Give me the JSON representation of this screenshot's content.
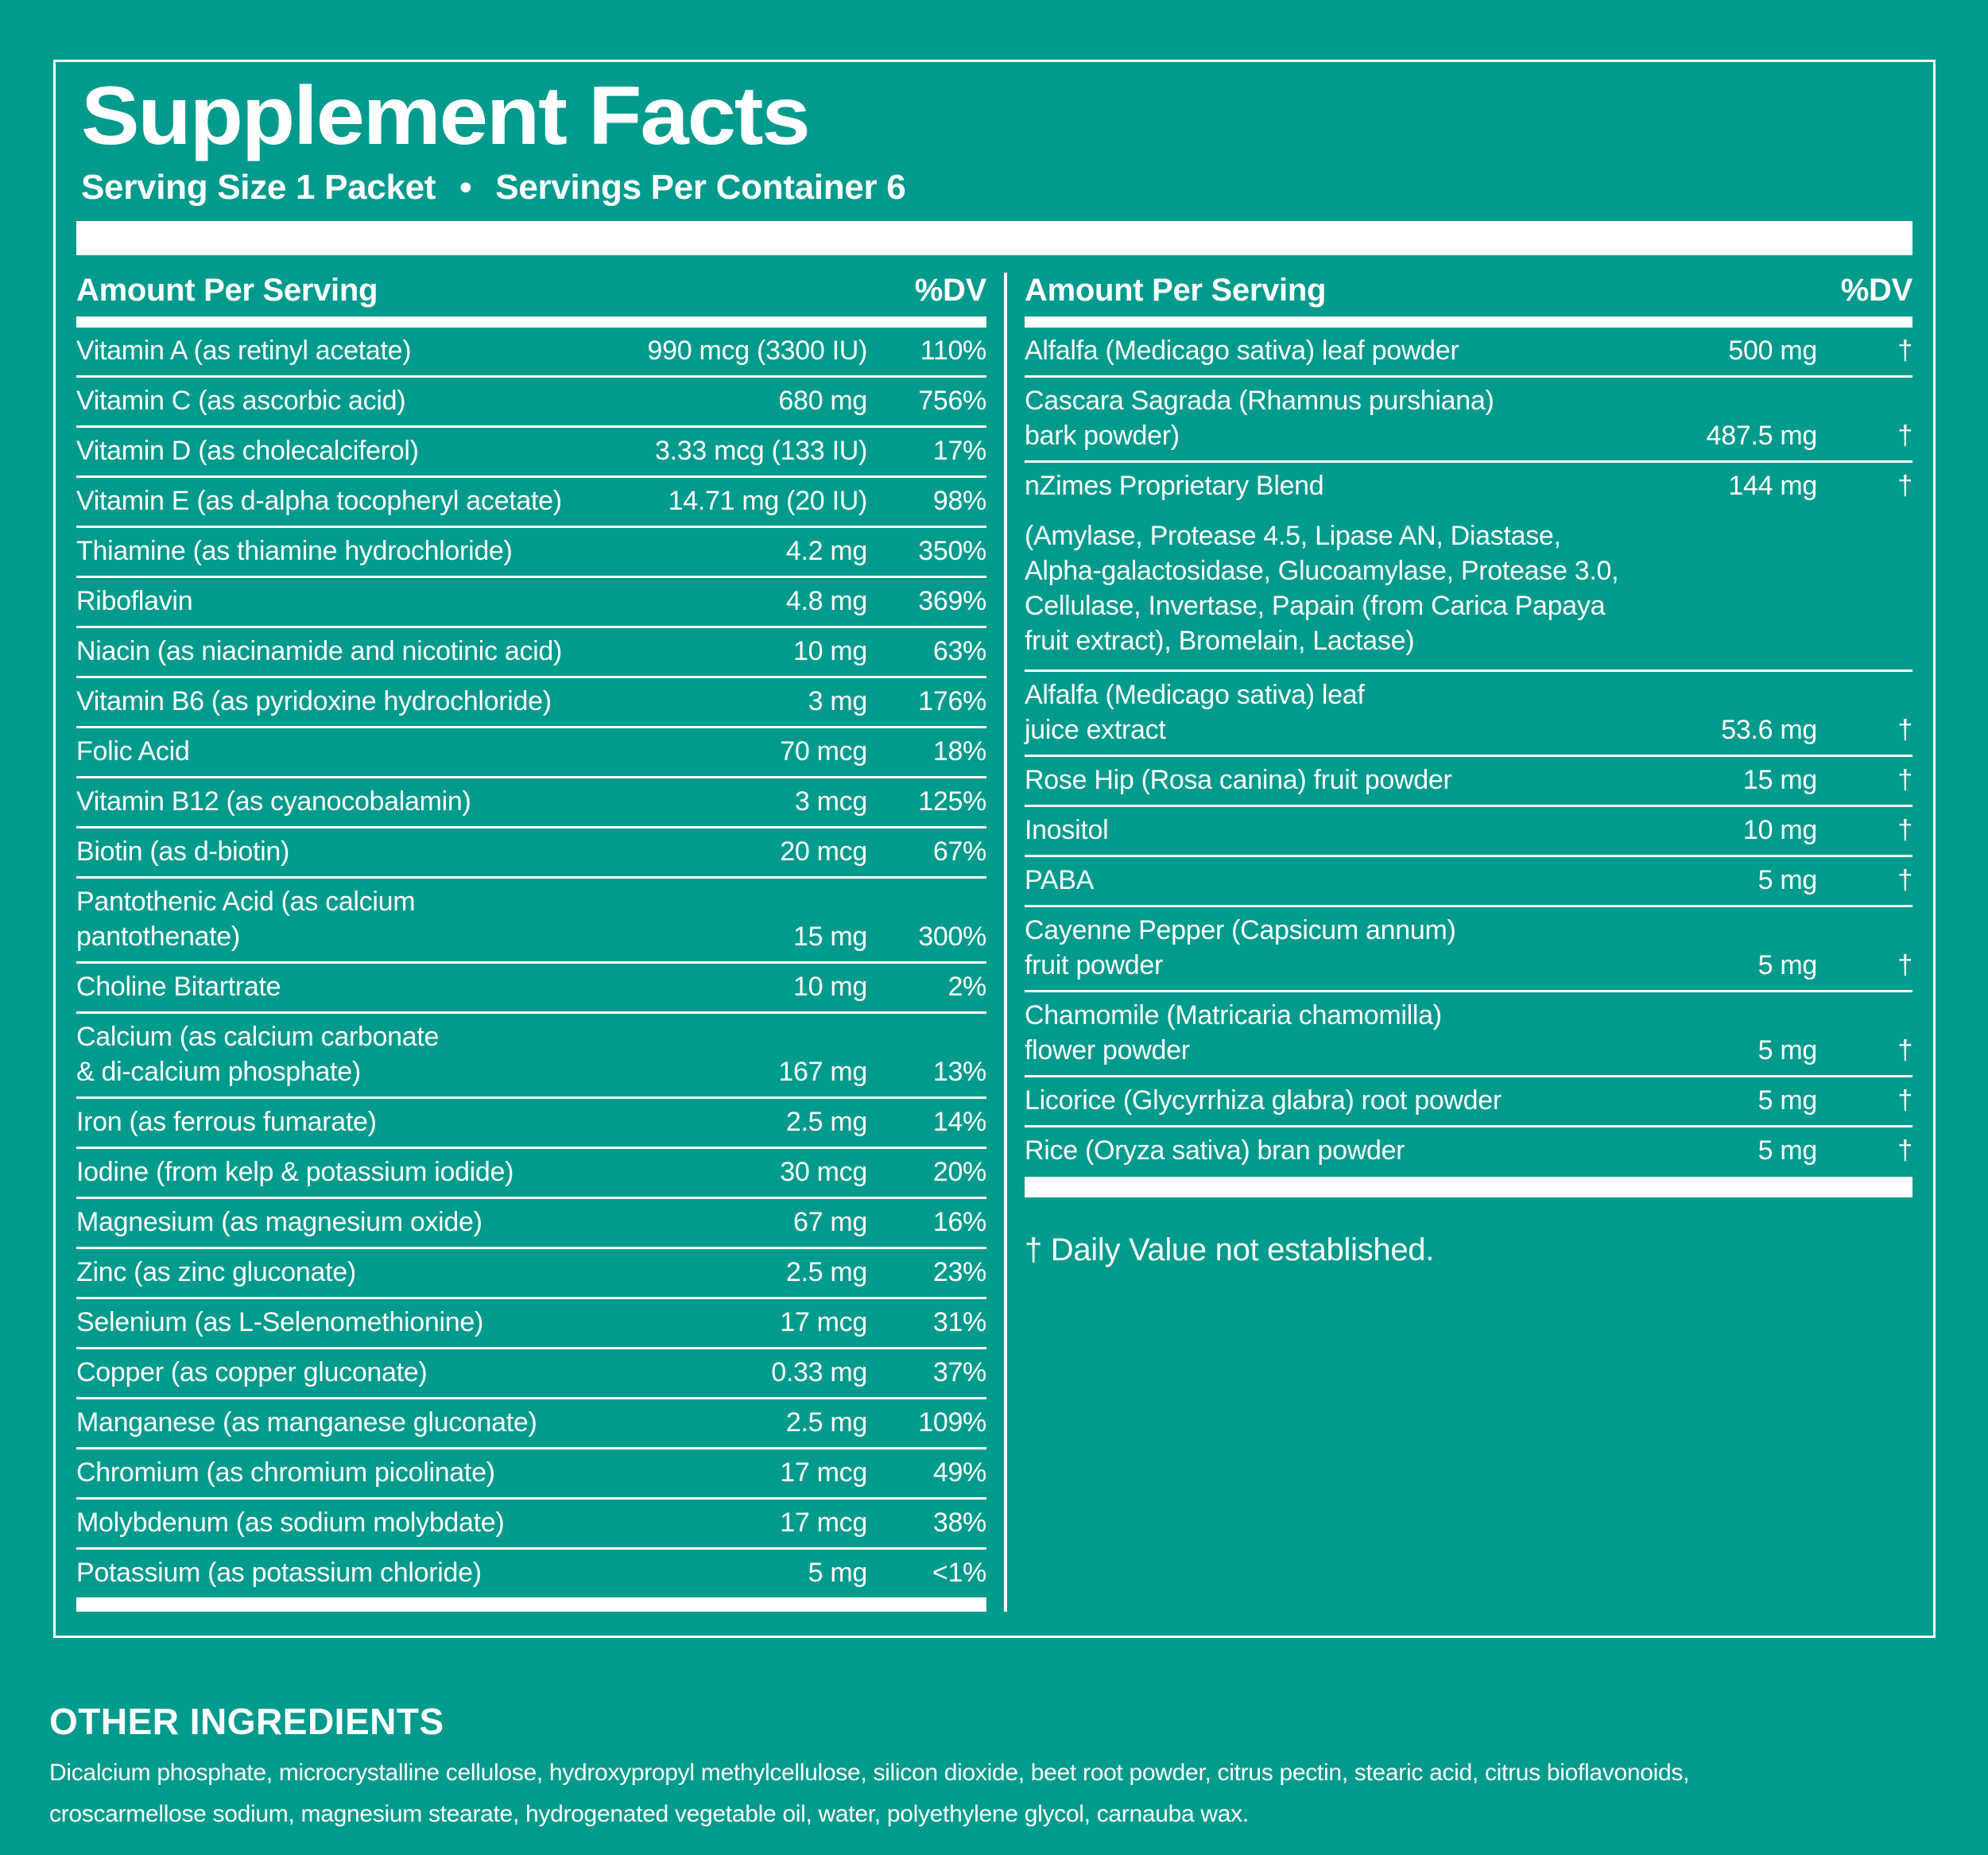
{
  "colors": {
    "background": "#009b8d",
    "foreground": "#ffffff"
  },
  "panel": {
    "title": "Supplement Facts",
    "serving_size": "Serving Size 1 Packet",
    "bullet": "•",
    "servings_per_container": "Servings Per Container 6"
  },
  "left_column": {
    "amount_header": "Amount Per Serving",
    "dv_header": "%DV",
    "rows": [
      {
        "name": "Vitamin A (as retinyl acetate)",
        "amount": "990 mcg (3300 IU)",
        "dv": "110%"
      },
      {
        "name": "Vitamin C (as ascorbic acid)",
        "amount": "680 mg",
        "dv": "756%"
      },
      {
        "name": "Vitamin D (as cholecalciferol)",
        "amount": "3.33 mcg (133 IU)",
        "dv": "17%"
      },
      {
        "name": "Vitamin E (as d-alpha tocopheryl acetate)",
        "amount": "14.71 mg (20 IU)",
        "dv": "98%"
      },
      {
        "name": "Thiamine (as thiamine hydrochloride)",
        "amount": "4.2 mg",
        "dv": "350%"
      },
      {
        "name": "Riboflavin",
        "amount": "4.8 mg",
        "dv": "369%"
      },
      {
        "name": "Niacin (as niacinamide and nicotinic acid)",
        "amount": "10 mg",
        "dv": "63%"
      },
      {
        "name": "Vitamin B6 (as pyridoxine hydrochloride)",
        "amount": "3 mg",
        "dv": "176%"
      },
      {
        "name": "Folic Acid",
        "amount": "70 mcg",
        "dv": "18%"
      },
      {
        "name": "Vitamin B12 (as cyanocobalamin)",
        "amount": "3 mcg",
        "dv": "125%"
      },
      {
        "name": "Biotin (as d-biotin)",
        "amount": "20 mcg",
        "dv": "67%"
      },
      {
        "name": "Pantothenic Acid (as calcium\npantothenate)",
        "amount": "15 mg",
        "dv": "300%"
      },
      {
        "name": "Choline Bitartrate",
        "amount": "10 mg",
        "dv": "2%"
      },
      {
        "name": "Calcium (as calcium carbonate\n& di-calcium phosphate)",
        "amount": "167 mg",
        "dv": "13%"
      },
      {
        "name": "Iron (as ferrous fumarate)",
        "amount": "2.5 mg",
        "dv": "14%"
      },
      {
        "name": "Iodine (from kelp & potassium iodide)",
        "amount": "30 mcg",
        "dv": "20%"
      },
      {
        "name": "Magnesium (as magnesium oxide)",
        "amount": "67 mg",
        "dv": "16%"
      },
      {
        "name": "Zinc (as zinc gluconate)",
        "amount": "2.5 mg",
        "dv": "23%"
      },
      {
        "name": "Selenium (as L-Selenomethionine)",
        "amount": "17 mcg",
        "dv": "31%"
      },
      {
        "name": "Copper (as copper gluconate)",
        "amount": "0.33 mg",
        "dv": "37%"
      },
      {
        "name": "Manganese (as manganese gluconate)",
        "amount": "2.5 mg",
        "dv": "109%"
      },
      {
        "name": "Chromium (as chromium picolinate)",
        "amount": "17 mcg",
        "dv": "49%"
      },
      {
        "name": "Molybdenum (as sodium molybdate)",
        "amount": "17 mcg",
        "dv": "38%"
      },
      {
        "name": "Potassium (as potassium chloride)",
        "amount": "5 mg",
        "dv": "<1%"
      }
    ]
  },
  "right_column": {
    "amount_header": "Amount Per Serving",
    "dv_header": "%DV",
    "rows": [
      {
        "name": "Alfalfa (Medicago sativa) leaf powder",
        "amount": "500 mg",
        "dv": "†"
      },
      {
        "name": "Cascara Sagrada (Rhamnus purshiana)\nbark powder)",
        "amount": "487.5 mg",
        "dv": "†"
      },
      {
        "name": "nZimes Proprietary Blend",
        "amount": "144 mg",
        "dv": "†",
        "details": "(Amylase, Protease 4.5, Lipase AN, Diastase,\nAlpha-galactosidase, Glucoamylase, Protease 3.0,\nCellulase, Invertase, Papain (from Carica Papaya\nfruit extract), Bromelain, Lactase)"
      },
      {
        "name": "Alfalfa (Medicago sativa) leaf\njuice extract",
        "amount": "53.6 mg",
        "dv": "†"
      },
      {
        "name": "Rose Hip (Rosa canina) fruit powder",
        "amount": "15 mg",
        "dv": "†"
      },
      {
        "name": "Inositol",
        "amount": "10 mg",
        "dv": "†"
      },
      {
        "name": "PABA",
        "amount": "5 mg",
        "dv": "†"
      },
      {
        "name": "Cayenne Pepper (Capsicum annum)\nfruit powder",
        "amount": "5 mg",
        "dv": "†"
      },
      {
        "name": "Chamomile (Matricaria chamomilla)\nflower powder",
        "amount": "5 mg",
        "dv": "†"
      },
      {
        "name": "Licorice (Glycyrrhiza glabra) root powder",
        "amount": "5 mg",
        "dv": "†"
      },
      {
        "name": "Rice (Oryza sativa) bran powder",
        "amount": "5 mg",
        "dv": "†"
      }
    ],
    "footnote": "† Daily Value not established."
  },
  "other_ingredients": {
    "heading": "OTHER INGREDIENTS",
    "text": "Dicalcium phosphate, microcrystalline cellulose, hydroxypropyl methylcellulose, silicon dioxide, beet root powder, citrus pectin, stearic acid, citrus bioflavonoids,\ncroscarmellose sodium, magnesium stearate, hydrogenated vegetable oil, water, polyethylene glycol, carnauba wax."
  }
}
